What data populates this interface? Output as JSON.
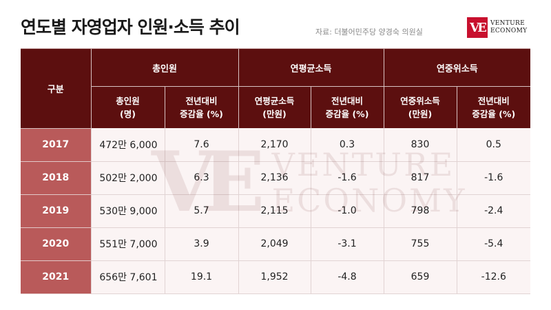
{
  "header": {
    "title": "연도별 자영업자 인원·소득 추이",
    "source": "자료: 더불어민주당 양경숙 의원실"
  },
  "logo": {
    "mark": "VE",
    "line1": "VENTURE",
    "line2": "ECONOMY",
    "color": "#c8102e"
  },
  "table": {
    "corner_label": "구분",
    "groups": [
      "총인원",
      "연평균소득",
      "연중위소득"
    ],
    "subheaders": [
      [
        "총인원",
        "(명)"
      ],
      [
        "전년대비",
        "증감율 (%)"
      ],
      [
        "연평균소득",
        "(만원)"
      ],
      [
        "전년대비",
        "증감율 (%)"
      ],
      [
        "연중위소득",
        "(만원)"
      ],
      [
        "전년대비",
        "증감율 (%)"
      ]
    ],
    "rows": [
      {
        "year": "2017",
        "cells": [
          "472만 6,000",
          "7.6",
          "2,170",
          "0.3",
          "830",
          "0.5"
        ]
      },
      {
        "year": "2018",
        "cells": [
          "502만 2,000",
          "6.3",
          "2,136",
          "-1.6",
          "817",
          "-1.6"
        ]
      },
      {
        "year": "2019",
        "cells": [
          "530만 9,000",
          "5.7",
          "2,115",
          "-1.0",
          "798",
          "-2.4"
        ]
      },
      {
        "year": "2020",
        "cells": [
          "551만 7,000",
          "3.9",
          "2,049",
          "-3.1",
          "755",
          "-5.4"
        ]
      },
      {
        "year": "2021",
        "cells": [
          "656만 7,601",
          "19.1",
          "1,952",
          "-4.8",
          "659",
          "-12.6"
        ]
      }
    ],
    "header_color": "#5c0f0f",
    "year_color": "#b95a5a"
  }
}
